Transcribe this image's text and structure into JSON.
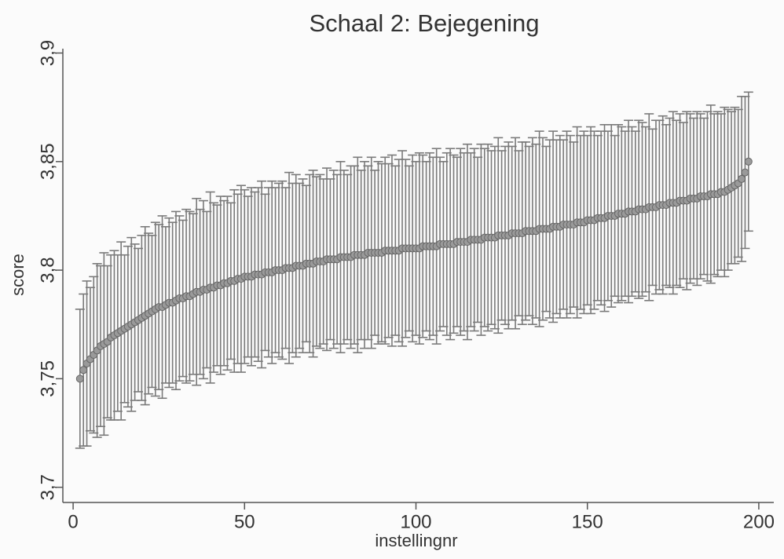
{
  "chart_data": {
    "type": "errorbar",
    "title": "Schaal 2: Bejegening",
    "x_label": "instellingnr",
    "y_label": "score",
    "color": "#7a7a7a",
    "marker_color": "#9a9a9a",
    "xlim": [
      -3,
      203
    ],
    "xticks": [
      0,
      50,
      100,
      150,
      200
    ],
    "ylim": [
      3.693,
      3.902
    ],
    "yticks": [
      {
        "value": 3.7,
        "label": "3,7"
      },
      {
        "value": 3.75,
        "label": "3,75"
      },
      {
        "value": 3.8,
        "label": "3,8"
      },
      {
        "value": 3.85,
        "label": "3,85"
      },
      {
        "value": 3.9,
        "label": "3,9"
      }
    ],
    "x": [
      2,
      3,
      4,
      5,
      6,
      7,
      8,
      9,
      10,
      11,
      12,
      13,
      14,
      15,
      16,
      17,
      18,
      19,
      20,
      21,
      22,
      23,
      24,
      25,
      26,
      27,
      28,
      29,
      30,
      31,
      32,
      33,
      34,
      35,
      36,
      37,
      38,
      39,
      40,
      41,
      42,
      43,
      44,
      45,
      46,
      47,
      48,
      49,
      50,
      51,
      52,
      53,
      54,
      55,
      56,
      57,
      58,
      59,
      60,
      61,
      62,
      63,
      64,
      65,
      66,
      67,
      68,
      69,
      70,
      71,
      72,
      73,
      74,
      75,
      76,
      77,
      78,
      79,
      80,
      81,
      82,
      83,
      84,
      85,
      86,
      87,
      88,
      89,
      90,
      91,
      92,
      93,
      94,
      95,
      96,
      97,
      98,
      99,
      100,
      101,
      102,
      103,
      104,
      105,
      106,
      107,
      108,
      109,
      110,
      111,
      112,
      113,
      114,
      115,
      116,
      117,
      118,
      119,
      120,
      121,
      122,
      123,
      124,
      125,
      126,
      127,
      128,
      129,
      130,
      131,
      132,
      133,
      134,
      135,
      136,
      137,
      138,
      139,
      140,
      141,
      142,
      143,
      144,
      145,
      146,
      147,
      148,
      149,
      150,
      151,
      152,
      153,
      154,
      155,
      156,
      157,
      158,
      159,
      160,
      161,
      162,
      163,
      164,
      165,
      166,
      167,
      168,
      169,
      170,
      171,
      172,
      173,
      174,
      175,
      176,
      177,
      178,
      179,
      180,
      181,
      182,
      183,
      184,
      185,
      186,
      187,
      188,
      189,
      190,
      191,
      192,
      193,
      194,
      195,
      196,
      197
    ],
    "values": [
      3.75,
      3.754,
      3.757,
      3.759,
      3.761,
      3.763,
      3.765,
      3.766,
      3.767,
      3.769,
      3.77,
      3.771,
      3.772,
      3.773,
      3.774,
      3.775,
      3.776,
      3.777,
      3.778,
      3.779,
      3.78,
      3.781,
      3.782,
      3.783,
      3.783,
      3.784,
      3.785,
      3.785,
      3.786,
      3.787,
      3.787,
      3.788,
      3.788,
      3.789,
      3.79,
      3.79,
      3.791,
      3.791,
      3.792,
      3.792,
      3.793,
      3.793,
      3.794,
      3.794,
      3.795,
      3.795,
      3.796,
      3.796,
      3.797,
      3.797,
      3.797,
      3.798,
      3.798,
      3.798,
      3.799,
      3.799,
      3.799,
      3.8,
      3.8,
      3.8,
      3.801,
      3.801,
      3.801,
      3.802,
      3.802,
      3.802,
      3.803,
      3.803,
      3.803,
      3.804,
      3.804,
      3.804,
      3.805,
      3.805,
      3.805,
      3.805,
      3.806,
      3.806,
      3.806,
      3.806,
      3.807,
      3.807,
      3.807,
      3.807,
      3.808,
      3.808,
      3.808,
      3.808,
      3.808,
      3.809,
      3.809,
      3.809,
      3.809,
      3.809,
      3.81,
      3.81,
      3.81,
      3.81,
      3.81,
      3.81,
      3.811,
      3.811,
      3.811,
      3.811,
      3.811,
      3.812,
      3.812,
      3.812,
      3.812,
      3.812,
      3.813,
      3.813,
      3.813,
      3.813,
      3.814,
      3.814,
      3.814,
      3.814,
      3.815,
      3.815,
      3.815,
      3.815,
      3.816,
      3.816,
      3.816,
      3.816,
      3.817,
      3.817,
      3.817,
      3.817,
      3.818,
      3.818,
      3.818,
      3.818,
      3.819,
      3.819,
      3.819,
      3.819,
      3.82,
      3.82,
      3.82,
      3.821,
      3.821,
      3.821,
      3.821,
      3.822,
      3.822,
      3.822,
      3.823,
      3.823,
      3.823,
      3.824,
      3.824,
      3.824,
      3.825,
      3.825,
      3.825,
      3.826,
      3.826,
      3.826,
      3.827,
      3.827,
      3.827,
      3.828,
      3.828,
      3.828,
      3.829,
      3.829,
      3.829,
      3.83,
      3.83,
      3.83,
      3.831,
      3.831,
      3.831,
      3.832,
      3.832,
      3.832,
      3.833,
      3.833,
      3.833,
      3.834,
      3.834,
      3.834,
      3.835,
      3.835,
      3.835,
      3.836,
      3.836,
      3.837,
      3.838,
      3.839,
      3.84,
      3.842,
      3.845,
      3.85
    ],
    "errors": [
      0.032,
      0.035,
      0.038,
      0.033,
      0.036,
      0.04,
      0.037,
      0.042,
      0.035,
      0.038,
      0.039,
      0.036,
      0.041,
      0.034,
      0.037,
      0.04,
      0.036,
      0.033,
      0.038,
      0.041,
      0.037,
      0.035,
      0.04,
      0.038,
      0.042,
      0.036,
      0.039,
      0.037,
      0.041,
      0.038,
      0.036,
      0.04,
      0.039,
      0.037,
      0.043,
      0.038,
      0.041,
      0.036,
      0.044,
      0.039,
      0.037,
      0.041,
      0.038,
      0.04,
      0.036,
      0.042,
      0.039,
      0.043,
      0.04,
      0.037,
      0.041,
      0.038,
      0.04,
      0.043,
      0.036,
      0.039,
      0.042,
      0.038,
      0.04,
      0.041,
      0.037,
      0.044,
      0.039,
      0.042,
      0.038,
      0.04,
      0.036,
      0.041,
      0.043,
      0.039,
      0.04,
      0.038,
      0.042,
      0.037,
      0.041,
      0.039,
      0.044,
      0.04,
      0.038,
      0.042,
      0.041,
      0.045,
      0.039,
      0.043,
      0.04,
      0.044,
      0.038,
      0.042,
      0.041,
      0.043,
      0.04,
      0.044,
      0.039,
      0.042,
      0.045,
      0.041,
      0.038,
      0.043,
      0.04,
      0.044,
      0.042,
      0.039,
      0.043,
      0.041,
      0.045,
      0.04,
      0.038,
      0.042,
      0.044,
      0.041,
      0.039,
      0.043,
      0.041,
      0.045,
      0.04,
      0.042,
      0.038,
      0.044,
      0.041,
      0.043,
      0.04,
      0.042,
      0.045,
      0.039,
      0.041,
      0.043,
      0.04,
      0.044,
      0.038,
      0.042,
      0.041,
      0.039,
      0.043,
      0.04,
      0.045,
      0.042,
      0.038,
      0.041,
      0.044,
      0.04,
      0.042,
      0.039,
      0.043,
      0.041,
      0.038,
      0.044,
      0.04,
      0.042,
      0.039,
      0.043,
      0.041,
      0.038,
      0.04,
      0.043,
      0.039,
      0.042,
      0.037,
      0.041,
      0.04,
      0.038,
      0.042,
      0.039,
      0.037,
      0.041,
      0.04,
      0.038,
      0.043,
      0.036,
      0.04,
      0.039,
      0.041,
      0.037,
      0.039,
      0.042,
      0.038,
      0.04,
      0.036,
      0.041,
      0.039,
      0.037,
      0.04,
      0.038,
      0.036,
      0.039,
      0.041,
      0.037,
      0.038,
      0.036,
      0.039,
      0.037,
      0.035,
      0.036,
      0.034,
      0.038,
      0.035,
      0.032
    ]
  }
}
